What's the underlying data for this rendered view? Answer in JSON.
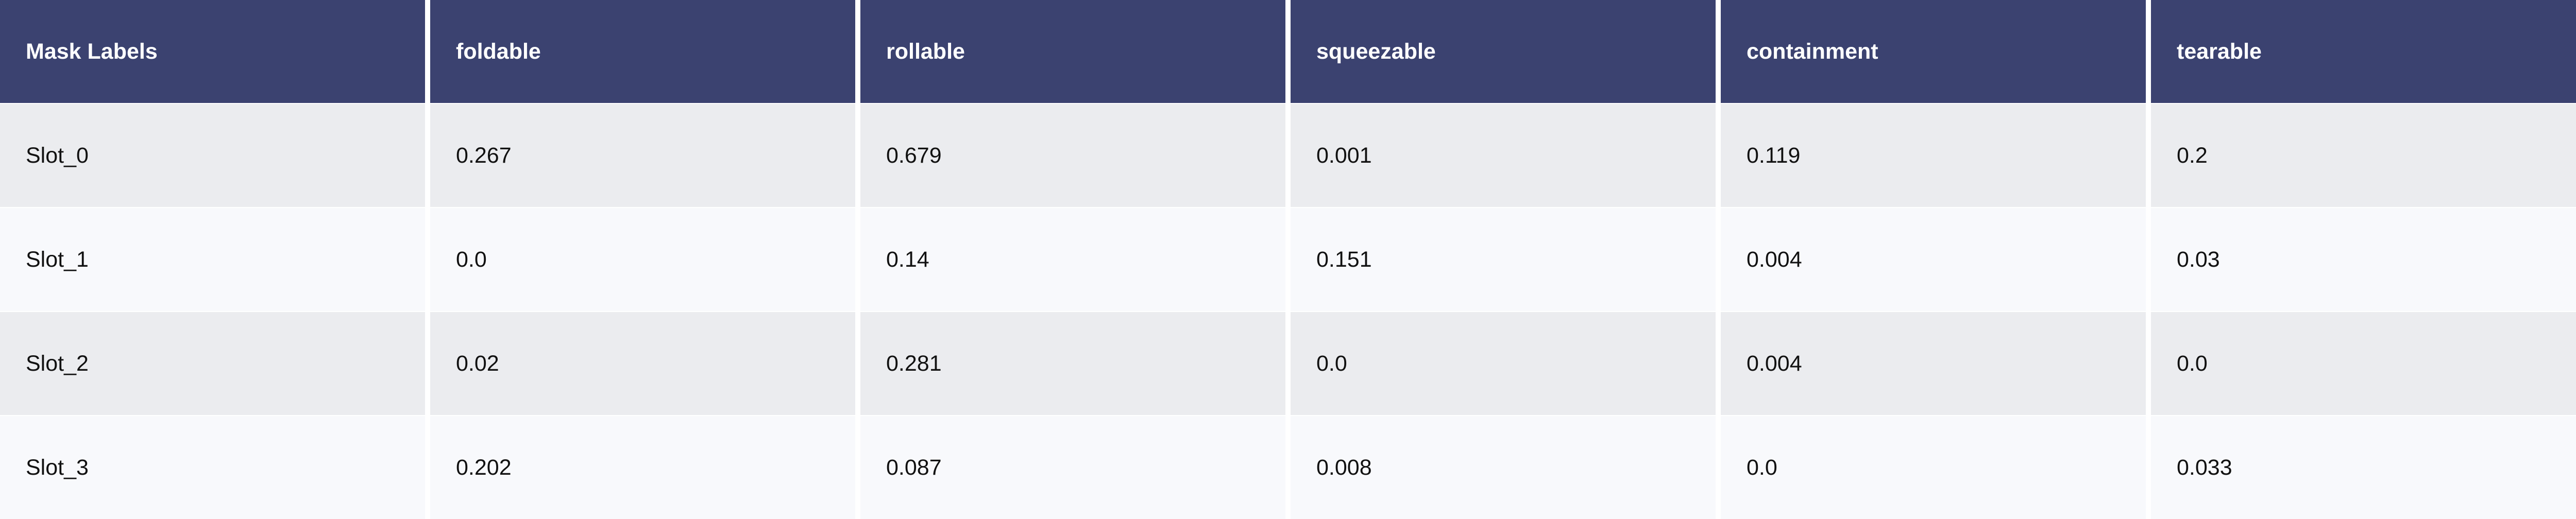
{
  "chart_data": {
    "type": "table",
    "columns": [
      "Mask Labels",
      "foldable",
      "rollable",
      "squeezable",
      "containment",
      "tearable"
    ],
    "rows": [
      [
        "Slot_0",
        "0.267",
        "0.679",
        "0.001",
        "0.119",
        "0.2"
      ],
      [
        "Slot_1",
        "0.0",
        "0.14",
        "0.151",
        "0.004",
        "0.03"
      ],
      [
        "Slot_2",
        "0.02",
        "0.281",
        "0.0",
        "0.004",
        "0.0"
      ],
      [
        "Slot_3",
        "0.202",
        "0.087",
        "0.008",
        "0.0",
        "0.033"
      ]
    ]
  },
  "colors": {
    "header_bg": "#3b4270",
    "header_text": "#ffffff",
    "row_even_bg": "#ebecef",
    "row_odd_bg": "#f8f9fc"
  }
}
